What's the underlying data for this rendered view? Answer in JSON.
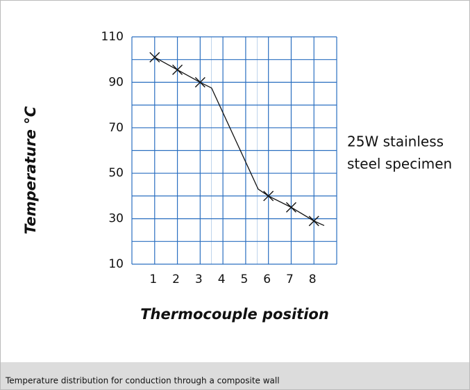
{
  "chart_data": {
    "type": "line",
    "xlabel": "Thermocouple position",
    "ylabel": "Temperature °C",
    "annotation": [
      "25W stainless",
      "steel specimen"
    ],
    "xlim": [
      0,
      9
    ],
    "ylim": [
      10,
      110
    ],
    "xticks": [
      1,
      2,
      3,
      4,
      5,
      6,
      7,
      8
    ],
    "yticks": [
      10,
      30,
      50,
      70,
      90,
      110
    ],
    "xgrid": [
      0,
      1,
      2,
      3,
      4,
      5,
      6,
      7,
      8,
      9
    ],
    "ygrid": [
      10,
      20,
      30,
      40,
      50,
      60,
      70,
      80,
      90,
      100,
      110
    ],
    "interfaces": [
      3.5,
      5.5
    ],
    "grid_color": "#2a6fc0",
    "color": "#111111",
    "series": [
      {
        "style": "line",
        "x": [
          1,
          2,
          3,
          3.5,
          5.55,
          6,
          7,
          8,
          8.45
        ],
        "values": [
          101,
          95.5,
          90,
          87.5,
          43,
          40,
          35,
          29,
          27
        ]
      },
      {
        "style": "marker",
        "x": [
          1,
          2,
          3,
          6,
          7,
          8
        ],
        "values": [
          101,
          95.5,
          90,
          40,
          35,
          29
        ]
      }
    ]
  },
  "caption": "Temperature distribution for conduction through a composite wall"
}
